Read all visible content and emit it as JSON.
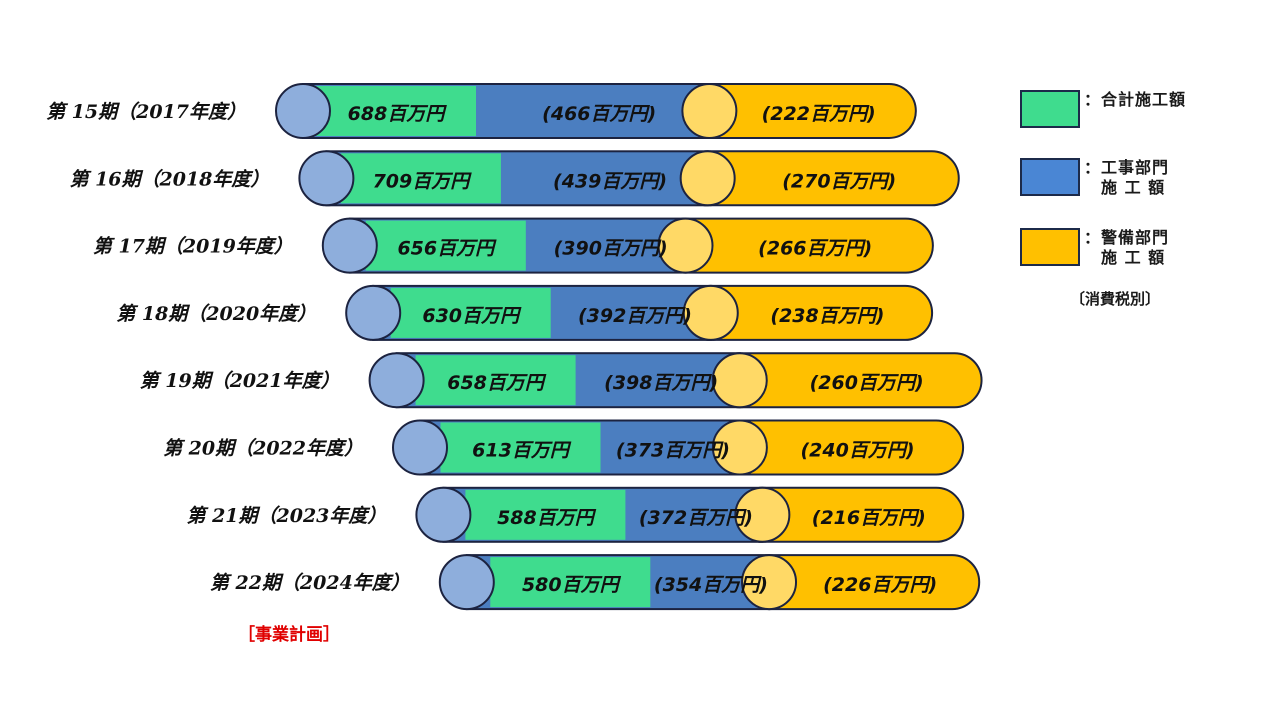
{
  "chart_data": {
    "type": "bar",
    "categories": [
      "第 15期（2017年度）",
      "第 16期（2018年度）",
      "第 17期（2019年度）",
      "第 18期（2020年度）",
      "第 19期（2021年度）",
      "第 20期（2022年度）",
      "第 21期（2023年度）",
      "第 22期（2024年度）"
    ],
    "series": [
      {
        "name": "合計施工額",
        "values": [
          688,
          709,
          656,
          630,
          658,
          613,
          588,
          580
        ]
      },
      {
        "name": "工事部門施工額",
        "values": [
          466,
          439,
          390,
          392,
          398,
          373,
          372,
          354
        ]
      },
      {
        "name": "警備部門施工額",
        "values": [
          222,
          270,
          266,
          238,
          260,
          240,
          216,
          226
        ]
      }
    ],
    "value_labels": {
      "total": [
        "688百万円",
        "709百万円",
        "656百万円",
        "630百万円",
        "658百万円",
        "613百万円",
        "588百万円",
        "580百万円"
      ],
      "construction": [
        "(466百万円)",
        "(439百万円)",
        "(390百万円)",
        "(392百万円)",
        "(398百万円)",
        "(373百万円)",
        "(372百万円)",
        "(354百万円)"
      ],
      "security": [
        "(222百万円)",
        "(270百万円)",
        "(266百万円)",
        "(238百万円)",
        "(260百万円)",
        "(240百万円)",
        "(216百万円)",
        "(226百万円)"
      ]
    },
    "note": "［事業計画］",
    "legend": [
      {
        "text": "：合計施工額",
        "color": "#3fdc8e"
      },
      {
        "text": "：工事部門\n　施 工 額",
        "color": "#4a86d4"
      },
      {
        "text": "：警備部門\n　施 工 額",
        "color": "#ffc000"
      }
    ],
    "legend_note": "〔消費税別〕",
    "colors": {
      "construction": "#4b7ec0",
      "security": "#ffc000",
      "total": "#3fdc8e",
      "left_cap": "#8eaedc",
      "right_cap": "#ffd966",
      "outline": "#1c2340"
    }
  }
}
